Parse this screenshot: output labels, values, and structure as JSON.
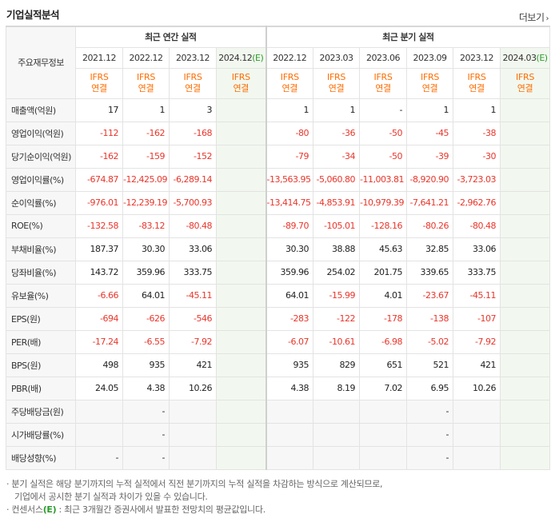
{
  "header": {
    "title": "기업실적분석",
    "more_label": "더보기",
    "more_arrow": "›"
  },
  "table": {
    "corner_label": "주요재무정보",
    "groups": {
      "annual": "최근 연간 실적",
      "quarterly": "최근 분기 실적"
    },
    "periods": [
      "2021.12",
      "2022.12",
      "2023.12",
      "2024.12",
      "2022.12",
      "2023.03",
      "2023.06",
      "2023.09",
      "2023.12",
      "2024.03"
    ],
    "estimate_mark": "(E)",
    "ifrs_top": "IFRS",
    "ifrs_bottom": "연결",
    "rows": [
      {
        "label": "매출액(억원)",
        "values": [
          "17",
          "1",
          "3",
          "",
          "1",
          "1",
          "-",
          "1",
          "1",
          ""
        ]
      },
      {
        "label": "영업이익(억원)",
        "values": [
          "-112",
          "-162",
          "-168",
          "",
          "-80",
          "-36",
          "-50",
          "-45",
          "-38",
          ""
        ]
      },
      {
        "label": "당기순이익(억원)",
        "values": [
          "-162",
          "-159",
          "-152",
          "",
          "-79",
          "-34",
          "-50",
          "-39",
          "-30",
          ""
        ]
      },
      {
        "label": "영업이익률(%)",
        "values": [
          "-674.87",
          "-12,425.09",
          "-6,289.14",
          "",
          "-13,563.95",
          "-5,060.80",
          "-11,003.81",
          "-8,920.90",
          "-3,723.03",
          ""
        ]
      },
      {
        "label": "순이익률(%)",
        "values": [
          "-976.01",
          "-12,239.19",
          "-5,700.93",
          "",
          "-13,414.75",
          "-4,853.91",
          "-10,979.39",
          "-7,641.21",
          "-2,962.76",
          ""
        ]
      },
      {
        "label": "ROE(%)",
        "values": [
          "-132.58",
          "-83.12",
          "-80.48",
          "",
          "-89.70",
          "-105.01",
          "-128.16",
          "-80.26",
          "-80.48",
          ""
        ]
      },
      {
        "label": "부채비율(%)",
        "values": [
          "187.37",
          "30.30",
          "33.06",
          "",
          "30.30",
          "38.88",
          "45.63",
          "32.85",
          "33.06",
          ""
        ]
      },
      {
        "label": "당좌비율(%)",
        "values": [
          "143.72",
          "359.96",
          "333.75",
          "",
          "359.96",
          "254.02",
          "201.75",
          "339.65",
          "333.75",
          ""
        ]
      },
      {
        "label": "유보율(%)",
        "values": [
          "-6.66",
          "64.01",
          "-45.11",
          "",
          "64.01",
          "-15.99",
          "4.01",
          "-23.67",
          "-45.11",
          ""
        ]
      },
      {
        "label": "EPS(원)",
        "values": [
          "-694",
          "-626",
          "-546",
          "",
          "-283",
          "-122",
          "-178",
          "-138",
          "-107",
          ""
        ]
      },
      {
        "label": "PER(배)",
        "values": [
          "-17.24",
          "-6.55",
          "-7.92",
          "",
          "-6.07",
          "-10.61",
          "-6.98",
          "-5.02",
          "-7.92",
          ""
        ]
      },
      {
        "label": "BPS(원)",
        "values": [
          "498",
          "935",
          "421",
          "",
          "935",
          "829",
          "651",
          "521",
          "421",
          ""
        ]
      },
      {
        "label": "PBR(배)",
        "values": [
          "24.05",
          "4.38",
          "10.26",
          "",
          "4.38",
          "8.19",
          "7.02",
          "6.95",
          "10.26",
          ""
        ]
      },
      {
        "label": "주당배당금(원)",
        "values": [
          "",
          "-",
          "",
          "",
          "",
          "",
          "",
          "-",
          "",
          ""
        ],
        "grey": true
      },
      {
        "label": "시가배당률(%)",
        "values": [
          "",
          "-",
          "",
          "",
          "",
          "",
          "",
          "-",
          "",
          ""
        ],
        "grey": true
      },
      {
        "label": "배당성향(%)",
        "values": [
          "-",
          "-",
          "",
          "",
          "",
          "",
          "",
          "-",
          "",
          ""
        ],
        "grey": true
      }
    ]
  },
  "notes": {
    "line1": "분기 실적은 해당 분기까지의 누적 실적에서 직전 분기까지의 누적 실적을 차감하는 방식으로 계산되므로,",
    "line2": "기업에서 공시한 분기 실적과 차이가 있을 수 있습니다.",
    "line3_prefix": "컨센서스",
    "line3_mark": "(E)",
    "line3_suffix": " : 최근 3개월간 증권사에서 발표한 전망치의 평균값입니다.",
    "bullet": "·"
  }
}
